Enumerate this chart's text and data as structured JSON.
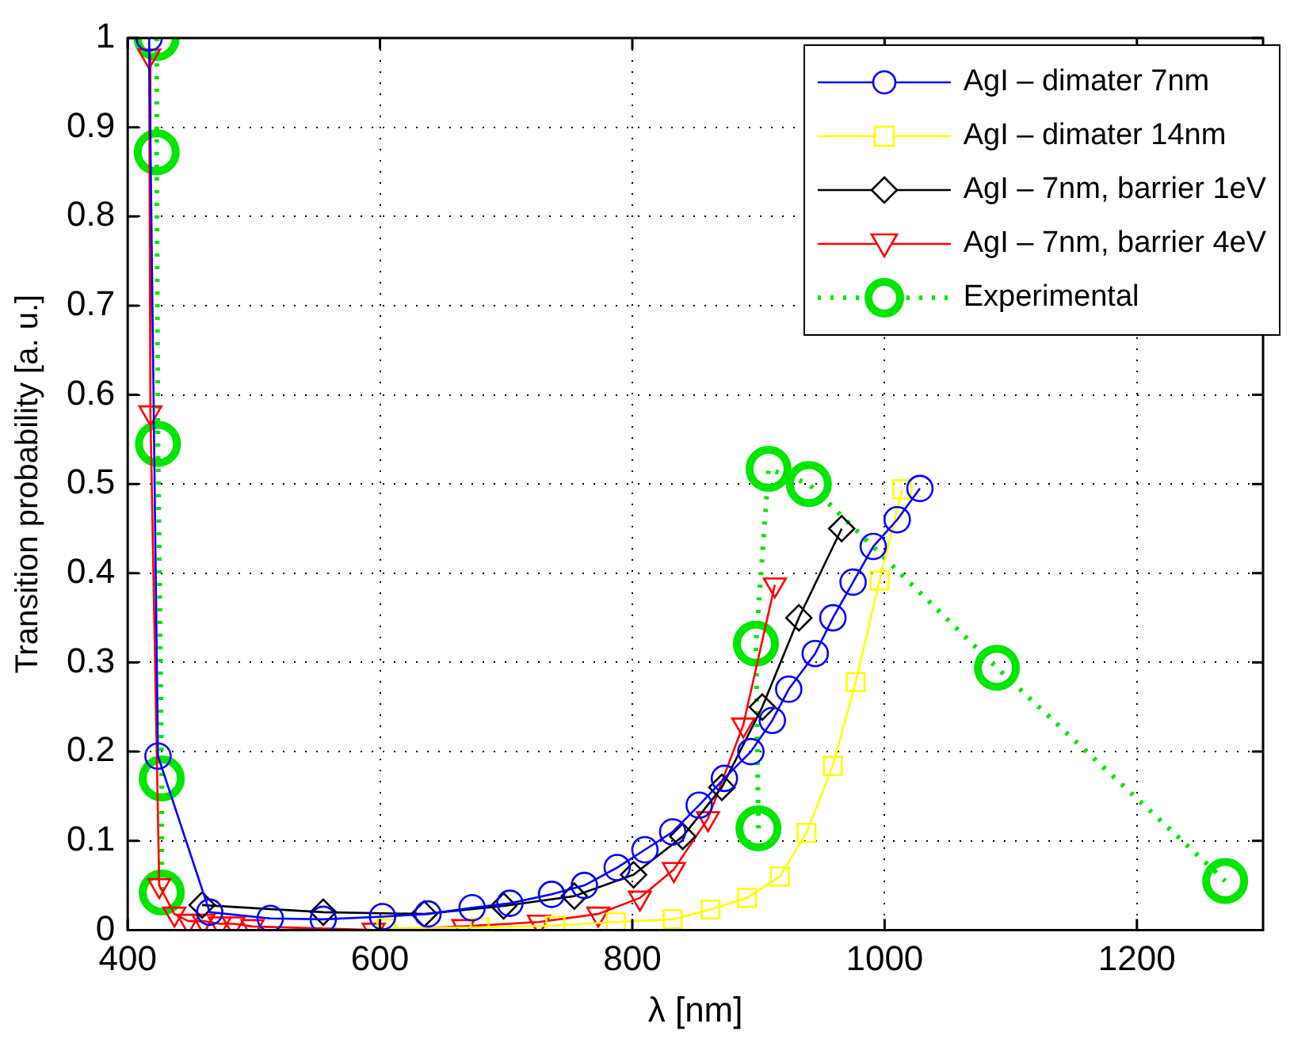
{
  "chart_data": {
    "type": "line",
    "xlabel": "λ [nm]",
    "ylabel": "Transition probability [a. u.]",
    "xlim": [
      400,
      1300
    ],
    "xticks": [
      400,
      600,
      800,
      1000,
      1200
    ],
    "ylim": [
      0,
      1
    ],
    "yticks": [
      0,
      0.1,
      0.2,
      0.3,
      0.4,
      0.5,
      0.6,
      0.7,
      0.8,
      0.9,
      1
    ],
    "grid": true,
    "legend": "top right",
    "series": [
      {
        "name": "AgI – dimater 7nm",
        "color": "#0000ff",
        "marker": "circle",
        "line_style": "solid",
        "x": [
          417,
          424,
          465,
          513,
          555,
          602,
          638,
          673,
          703,
          736,
          762,
          788,
          810,
          832,
          853,
          873,
          894,
          911,
          924,
          945,
          959,
          975,
          991,
          1010,
          1028
        ],
        "values": [
          1.0,
          0.195,
          0.02,
          0.013,
          0.012,
          0.015,
          0.018,
          0.025,
          0.03,
          0.04,
          0.05,
          0.07,
          0.09,
          0.11,
          0.14,
          0.17,
          0.2,
          0.235,
          0.27,
          0.31,
          0.35,
          0.39,
          0.43,
          0.46,
          0.495
        ]
      },
      {
        "name": "AgI – dimater 14nm",
        "color": "#ffff00",
        "marker": "square",
        "line_style": "solid",
        "x": [
          605,
          679,
          739,
          787,
          832,
          862,
          891,
          917,
          938,
          959,
          977,
          996,
          1014
        ],
        "values": [
          0.002,
          0.003,
          0.005,
          0.009,
          0.012,
          0.023,
          0.036,
          0.06,
          0.109,
          0.184,
          0.278,
          0.392,
          0.494
        ]
      },
      {
        "name": "AgI – 7nm, barrier 1eV",
        "color": "#000000",
        "marker": "diamond",
        "line_style": "solid",
        "x": [
          459,
          555,
          635,
          698,
          754,
          801,
          840,
          871,
          903,
          932,
          966
        ],
        "values": [
          0.028,
          0.02,
          0.018,
          0.027,
          0.038,
          0.062,
          0.105,
          0.16,
          0.25,
          0.35,
          0.45
        ]
      },
      {
        "name": "AgI – 7nm, barrier 4eV",
        "color": "#ff0000",
        "marker": "triangle",
        "line_style": "solid",
        "x": [
          417,
          418,
          425,
          437,
          448,
          460,
          473,
          484,
          499,
          595,
          666,
          726,
          773,
          806,
          833,
          860,
          888,
          913
        ],
        "values": [
          0.98,
          0.58,
          0.05,
          0.018,
          0.01,
          0.01,
          0.007,
          0.007,
          0.004,
          0,
          0.004,
          0.009,
          0.018,
          0.036,
          0.068,
          0.125,
          0.23,
          0.387
        ]
      },
      {
        "name": "Experimental",
        "color": "#00e600",
        "marker": "circle",
        "line_style": "dotted",
        "x": [
          423,
          423,
          424,
          427,
          427,
          null,
          900,
          898,
          908,
          940,
          1089,
          1270
        ],
        "values": [
          1.0,
          0.872,
          0.545,
          0.17,
          0.042,
          null,
          0.114,
          0.321,
          0.517,
          0.5,
          0.294,
          0.055
        ]
      }
    ]
  }
}
